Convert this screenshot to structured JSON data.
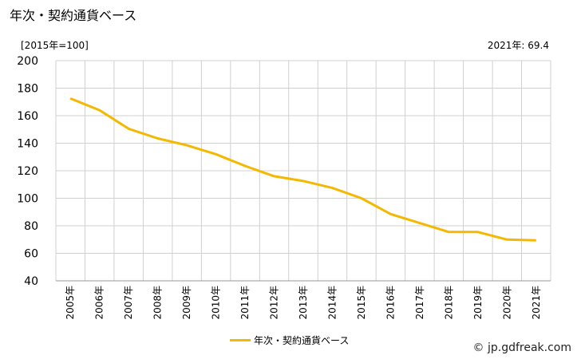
{
  "header": {
    "title": "年次・契約通貨ベース",
    "unit": "[2015年=100]",
    "latest": "2021年: 69.4"
  },
  "footer": {
    "credit": "© jp.gdfreak.com"
  },
  "chart_data": {
    "type": "line",
    "title": "年次・契約通貨ベース",
    "xlabel": "",
    "ylabel": "",
    "ylim": [
      40,
      200
    ],
    "yticks": [
      40,
      60,
      80,
      100,
      120,
      140,
      160,
      180,
      200
    ],
    "grid": true,
    "legend_position": "bottom",
    "categories": [
      "2005年",
      "2006年",
      "2007年",
      "2008年",
      "2009年",
      "2010年",
      "2011年",
      "2012年",
      "2013年",
      "2014年",
      "2015年",
      "2016年",
      "2017年",
      "2018年",
      "2019年",
      "2020年",
      "2021年"
    ],
    "series": [
      {
        "name": "年次・契約通貨ベース",
        "color": "#f5b800",
        "values": [
          172.5,
          164,
          150.5,
          143.5,
          138.5,
          132,
          123.5,
          116,
          112.5,
          107.5,
          100,
          88.5,
          82,
          75.5,
          75.5,
          70,
          69.4
        ]
      }
    ]
  }
}
